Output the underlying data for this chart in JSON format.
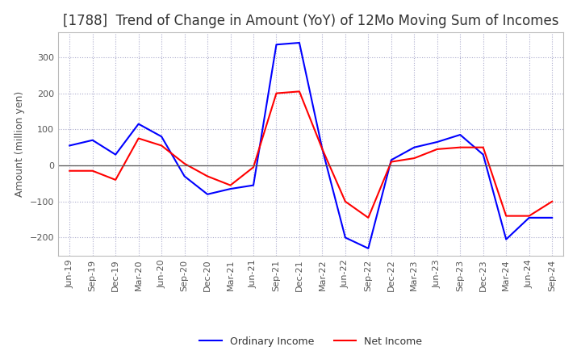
{
  "title": "[1788]  Trend of Change in Amount (YoY) of 12Mo Moving Sum of Incomes",
  "ylabel": "Amount (million yen)",
  "x_labels": [
    "Jun-19",
    "Sep-19",
    "Dec-19",
    "Mar-20",
    "Jun-20",
    "Sep-20",
    "Dec-20",
    "Mar-21",
    "Jun-21",
    "Sep-21",
    "Dec-21",
    "Mar-22",
    "Jun-22",
    "Sep-22",
    "Dec-22",
    "Mar-23",
    "Jun-23",
    "Sep-23",
    "Dec-23",
    "Mar-24",
    "Jun-24",
    "Sep-24"
  ],
  "ordinary_income": [
    55,
    70,
    30,
    115,
    80,
    -30,
    -80,
    -65,
    -55,
    335,
    340,
    45,
    -200,
    -230,
    15,
    50,
    65,
    85,
    30,
    -205,
    -145,
    -145
  ],
  "net_income": [
    -15,
    -15,
    -40,
    75,
    55,
    5,
    -30,
    -55,
    -5,
    200,
    205,
    45,
    -100,
    -145,
    10,
    20,
    45,
    50,
    50,
    -140,
    -140,
    -100
  ],
  "ordinary_income_color": "#0000ff",
  "net_income_color": "#ff0000",
  "ylim": [
    -250,
    370
  ],
  "yticks": [
    -200,
    -100,
    0,
    100,
    200,
    300
  ],
  "background_color": "#ffffff",
  "grid_color": "#aaaacc",
  "zero_line_color": "#555555",
  "title_fontsize": 12,
  "axis_label_fontsize": 9,
  "tick_fontsize": 8,
  "legend_fontsize": 9
}
